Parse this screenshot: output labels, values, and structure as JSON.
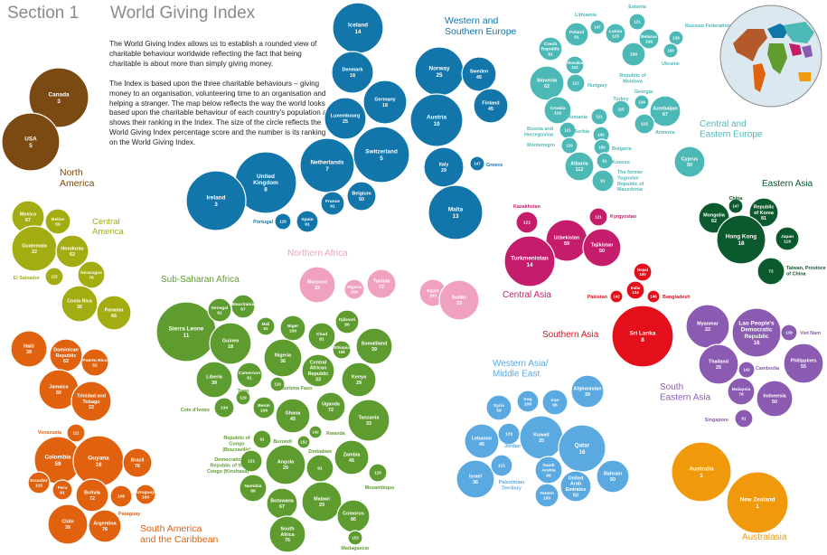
{
  "header": {
    "section": "Section 1",
    "title": "World Giving Index"
  },
  "intro": {
    "p1": "The World Giving Index allows us to establish a rounded view of charitable behaviour worldwide reflecting the fact that being charitable is about more than simply giving money.",
    "p2": "The Index is based upon the three charitable behaviours – giving money to an organisation, volunteering time to an organisation and helping a stranger. The map below reflects the way the world looks based upon the charitable behaviour of each country's population and shows their ranking in the Index. The size of the circle reflects the World Giving Index percentage score and the number is its ranking on the World Giving Index."
  },
  "map_icon": "world-map-icon",
  "chart_data": {
    "type": "bubble",
    "title": "World Giving Index",
    "value_label": "Rank on the World Giving Index",
    "size_label": "World Giving Index percentage score",
    "regions": [
      {
        "name": "North America",
        "color": "#7a4a12",
        "label_lines": [
          "North",
          "America"
        ],
        "countries": [
          {
            "name": "Canada",
            "rank": 3
          },
          {
            "name": "USA",
            "rank": 5
          }
        ]
      },
      {
        "name": "Central America",
        "color": "#a3ad12",
        "label_lines": [
          "Central",
          "America"
        ],
        "countries": [
          {
            "name": "Mexico",
            "rank": 67
          },
          {
            "name": "Belize",
            "rank": 59
          },
          {
            "name": "Guatemala",
            "rank": 22
          },
          {
            "name": "Honduras",
            "rank": 62
          },
          {
            "name": "El Salvador",
            "rank": 115
          },
          {
            "name": "Nicaragua",
            "rank": 76
          },
          {
            "name": "Costa Rica",
            "rank": 36
          },
          {
            "name": "Panama",
            "rank": 66
          }
        ]
      },
      {
        "name": "Caribbean",
        "color": "#e0620f",
        "label_lines": [],
        "countries": [
          {
            "name": "Haiti",
            "rank": 39
          },
          {
            "name": "Dominican Republic",
            "rank": 62
          },
          {
            "name": "Puerto Rico",
            "rank": 52
          },
          {
            "name": "Jamaica",
            "rank": 50
          },
          {
            "name": "Trinidad and Tobago",
            "rank": 22
          }
        ]
      },
      {
        "name": "South America and the Caribbean",
        "color": "#e0620f",
        "label_lines": [
          "South America",
          "and the Caribbean"
        ],
        "countries": [
          {
            "name": "Venezuela",
            "rank": 112
          },
          {
            "name": "Colombia",
            "rank": 59
          },
          {
            "name": "Guyana",
            "rank": 16
          },
          {
            "name": "Brazil",
            "rank": 76
          },
          {
            "name": "Ecuador",
            "rank": 115
          },
          {
            "name": "Peru",
            "rank": 91
          },
          {
            "name": "Bolivia",
            "rank": 72
          },
          {
            "name": "Uruguay",
            "rank": 100
          },
          {
            "name": "Paraguay",
            "rank": 106
          },
          {
            "name": "Chile",
            "rank": 39
          },
          {
            "name": "Argentina",
            "rank": 76
          }
        ]
      },
      {
        "name": "Western and Southern Europe",
        "color": "#1276ab",
        "label_lines": [
          "Western and",
          "Southern Europe"
        ],
        "countries": [
          {
            "name": "Iceland",
            "rank": 14
          },
          {
            "name": "Denmark",
            "rank": 18
          },
          {
            "name": "Germany",
            "rank": 18
          },
          {
            "name": "Luxembourg",
            "rank": 25
          },
          {
            "name": "Norway",
            "rank": 25
          },
          {
            "name": "Sweden",
            "rank": 45
          },
          {
            "name": "Finland",
            "rank": 45
          },
          {
            "name": "Austria",
            "rank": 10
          },
          {
            "name": "Netherlands",
            "rank": 7
          },
          {
            "name": "Switzerland",
            "rank": 5
          },
          {
            "name": "United Kingdom",
            "rank": 8
          },
          {
            "name": "Ireland",
            "rank": 3
          },
          {
            "name": "France",
            "rank": 91
          },
          {
            "name": "Belgium",
            "rank": 50
          },
          {
            "name": "Portugal",
            "rank": 129
          },
          {
            "name": "Spain",
            "rank": 91
          },
          {
            "name": "Italy",
            "rank": 29
          },
          {
            "name": "Greece",
            "rank": 147
          },
          {
            "name": "Malta",
            "rank": 13
          }
        ]
      },
      {
        "name": "Central and Eastern Europe",
        "color": "#4cb9b6",
        "label_lines": [
          "Central and",
          "Eastern Europe"
        ],
        "countries": [
          {
            "name": "Lithuania",
            "rank": 147
          },
          {
            "name": "Estonia",
            "rank": 121
          },
          {
            "name": "Latvia",
            "rank": 115
          },
          {
            "name": "Poland",
            "rank": 81
          },
          {
            "name": "Czech Republic",
            "rank": 81
          },
          {
            "name": "Slovakia",
            "rank": 112
          },
          {
            "name": "Belarus",
            "rank": 106
          },
          {
            "name": "Russian Federation",
            "rank": 138
          },
          {
            "name": "Republic of Moldova",
            "rank": 100
          },
          {
            "name": "Ukraine",
            "rank": 150
          },
          {
            "name": "Slovenia",
            "rank": 62
          },
          {
            "name": "Hungary",
            "rank": 121
          },
          {
            "name": "Croatia",
            "rank": 119
          },
          {
            "name": "Georgia",
            "rank": 134
          },
          {
            "name": "Turkey",
            "rank": 115
          },
          {
            "name": "Azerbaijan",
            "rank": 67
          },
          {
            "name": "Romania",
            "rank": 121
          },
          {
            "name": "Armenia",
            "rank": 115
          },
          {
            "name": "Bosnia and Herzegovina",
            "rank": 121
          },
          {
            "name": "Serbia",
            "rank": 142
          },
          {
            "name": "Montenegro",
            "rank": 129
          },
          {
            "name": "Bulgaria",
            "rank": 150
          },
          {
            "name": "Albania",
            "rank": 112
          },
          {
            "name": "Kosovo",
            "rank": 91
          },
          {
            "name": "The former Yugoslav Republic of Macedonia",
            "rank": 91
          },
          {
            "name": "Cyprus",
            "rank": 50
          }
        ]
      },
      {
        "name": "Eastern Asia",
        "color": "#0b5a2d",
        "label_lines": [
          "Eastern Asia"
        ],
        "countries": [
          {
            "name": "China",
            "rank": 147
          },
          {
            "name": "Mongolia",
            "rank": 62
          },
          {
            "name": "Republic of Korea",
            "rank": 81
          },
          {
            "name": "Hong Kong",
            "rank": 18
          },
          {
            "name": "Japan",
            "rank": 119
          },
          {
            "name": "Taiwan, Province of China",
            "rank": 72
          }
        ]
      },
      {
        "name": "Central Asia",
        "color": "#c51d6c",
        "label_lines": [
          "Central Asia"
        ],
        "countries": [
          {
            "name": "Kazakhstan",
            "rank": 121
          },
          {
            "name": "Kyrgyzstan",
            "rank": 121
          },
          {
            "name": "Uzbekistan",
            "rank": 59
          },
          {
            "name": "Tajikistan",
            "rank": 50
          },
          {
            "name": "Turkmenistan",
            "rank": 14
          }
        ]
      },
      {
        "name": "Southern Asia",
        "color": "#e3101c",
        "label_lines": [
          "Southern Asia"
        ],
        "countries": [
          {
            "name": "Nepal",
            "rank": 100
          },
          {
            "name": "Pakistan",
            "rank": 142
          },
          {
            "name": "India",
            "rank": 134
          },
          {
            "name": "Bangladesh",
            "rank": 146
          },
          {
            "name": "Sri Lanka",
            "rank": 8
          }
        ]
      },
      {
        "name": "South Eastern Asia",
        "color": "#8a5bb1",
        "label_lines": [
          "South",
          "Eastern Asia"
        ],
        "countries": [
          {
            "name": "Myanmar",
            "rank": 22
          },
          {
            "name": "Lao People's Democratic Republic",
            "rank": 16
          },
          {
            "name": "Viet Nam",
            "rank": 138
          },
          {
            "name": "Thailand",
            "rank": 25
          },
          {
            "name": "Cambodia",
            "rank": 142
          },
          {
            "name": "Philippines",
            "rank": 55
          },
          {
            "name": "Malaysia",
            "rank": 76
          },
          {
            "name": "Indonesia",
            "rank": 50
          },
          {
            "name": "Singapore",
            "rank": 91
          }
        ]
      },
      {
        "name": "Northern Africa",
        "color": "#f0a1c0",
        "label_lines": [
          "Northern Africa"
        ],
        "countries": [
          {
            "name": "Morocco",
            "rank": 33
          },
          {
            "name": "Algeria",
            "rank": 106
          },
          {
            "name": "Tunisia",
            "rank": 72
          },
          {
            "name": "Egypt",
            "rank": 100
          },
          {
            "name": "Sudan",
            "rank": 33
          }
        ]
      },
      {
        "name": "Sub-Saharan Africa",
        "color": "#5e9c2f",
        "label_lines": [
          "Sub-Saharan Africa"
        ],
        "countries": [
          {
            "name": "Sierra Leone",
            "rank": 11
          },
          {
            "name": "Senegal",
            "rank": 91
          },
          {
            "name": "Mauritania",
            "rank": 67
          },
          {
            "name": "Mali",
            "rank": 91
          },
          {
            "name": "Niger",
            "rank": 100
          },
          {
            "name": "Djibouti",
            "rank": 86
          },
          {
            "name": "Chad",
            "rank": 81
          },
          {
            "name": "Somaliland",
            "rank": 39
          },
          {
            "name": "Guinea",
            "rank": 18
          },
          {
            "name": "Nigeria",
            "rank": 36
          },
          {
            "name": "Ethiopia",
            "rank": 106
          },
          {
            "name": "Central African Republic",
            "rank": 33
          },
          {
            "name": "Kenya",
            "rank": 29
          },
          {
            "name": "Liberia",
            "rank": 39
          },
          {
            "name": "Cameroon",
            "rank": 81
          },
          {
            "name": "Burkina Faso",
            "rank": 129
          },
          {
            "name": "Togo",
            "rank": 129
          },
          {
            "name": "Benin",
            "rank": 106
          },
          {
            "name": "Ghana",
            "rank": 45
          },
          {
            "name": "Uganda",
            "rank": 72
          },
          {
            "name": "Cote d'Ivoire",
            "rank": 134
          },
          {
            "name": "Tanzania",
            "rank": 33
          },
          {
            "name": "Rwanda",
            "rank": 142
          },
          {
            "name": "Republic of Congo (Brazzaville)",
            "rank": 91
          },
          {
            "name": "Burundi",
            "rank": 152
          },
          {
            "name": "Zimbabwe",
            "rank": 91
          },
          {
            "name": "Democratic Republic of the Congo (Kinshasa)",
            "rank": 121
          },
          {
            "name": "Angola",
            "rank": 29
          },
          {
            "name": "Zambia",
            "rank": 45
          },
          {
            "name": "Mozambique",
            "rank": 129
          },
          {
            "name": "Namibia",
            "rank": 86
          },
          {
            "name": "Botswana",
            "rank": 67
          },
          {
            "name": "Malawi",
            "rank": 29
          },
          {
            "name": "South Africa",
            "rank": 76
          },
          {
            "name": "Comoros",
            "rank": 86
          },
          {
            "name": "Madagascar",
            "rank": 153
          }
        ]
      },
      {
        "name": "Western Asia/Middle East",
        "color": "#5aa9e1",
        "label_lines": [
          "Western Asia/",
          "Middle East"
        ],
        "countries": [
          {
            "name": "Syria",
            "rank": 59
          },
          {
            "name": "Iraq",
            "rank": 106
          },
          {
            "name": "Iran",
            "rank": 86
          },
          {
            "name": "Afghanistan",
            "rank": 39
          },
          {
            "name": "Lebanon",
            "rank": 45
          },
          {
            "name": "Jordan",
            "rank": 129
          },
          {
            "name": "Kuwait",
            "rank": 25
          },
          {
            "name": "Qatar",
            "rank": 16
          },
          {
            "name": "Israel",
            "rank": 36
          },
          {
            "name": "Palestinian Territory",
            "rank": 121
          },
          {
            "name": "Saudi Arabia",
            "rank": 86
          },
          {
            "name": "United Arab Emirates",
            "rank": 50
          },
          {
            "name": "Yemen",
            "rank": 100
          },
          {
            "name": "Bahrain",
            "rank": 50
          }
        ]
      },
      {
        "name": "Australasia",
        "color": "#f0990a",
        "label_lines": [
          "Australasia"
        ],
        "countries": [
          {
            "name": "Australia",
            "rank": 1
          },
          {
            "name": "New Zealand",
            "rank": 1
          }
        ]
      }
    ]
  }
}
